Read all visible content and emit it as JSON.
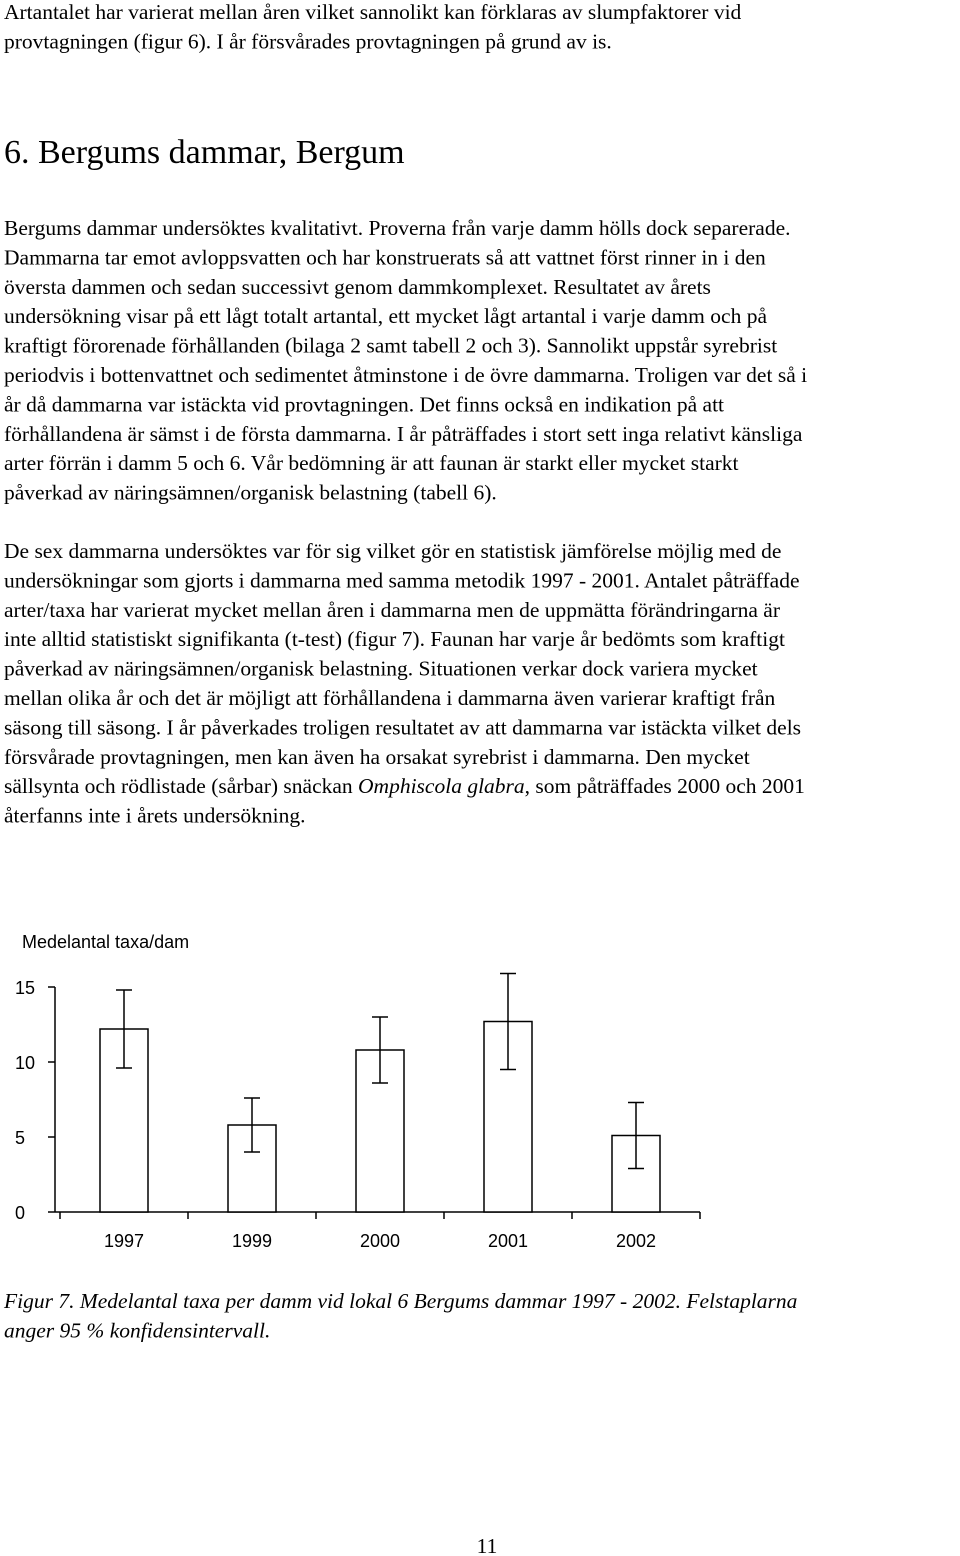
{
  "paragraphs": [
    {
      "lines": [
        "Artantalet har varierat mellan åren vilket sannolikt kan förklaras av slumpfaktorer vid",
        "provtagningen (figur 6). I år försvårades provtagningen på grund av is."
      ]
    },
    {
      "lines": [
        "Bergums dammar undersöktes kvalitativt. Proverna från varje damm hölls dock separerade.",
        "Dammarna tar emot avloppsvatten och har konstruerats så att vattnet först rinner in i den",
        "översta dammen och sedan successivt genom dammkomplexet. Resultatet av årets",
        "undersökning visar på ett lågt totalt artantal, ett mycket lågt artantal i varje damm och på",
        "kraftigt förorenade förhållanden (bilaga 2 samt tabell 2 och 3). Sannolikt uppstår syrebrist",
        "periodvis i bottenvattnet och sedimentet åtminstone i de övre dammarna. Troligen var det så i",
        "år då dammarna var istäckta vid provtagningen. Det finns också en indikation på att",
        "förhållandena är sämst i de första dammarna. I år påträffades i stort sett inga relativt känsliga",
        "arter förrän i damm 5 och 6. Vår bedömning är att faunan är starkt eller mycket starkt",
        "påverkad av näringsämnen/organisk belastning (tabell 6)."
      ]
    },
    {
      "lines": [
        "De sex dammarna undersöktes var för sig vilket gör en statistisk jämförelse möjlig med de",
        "undersökningar som gjorts i dammarna med samma metodik 1997 - 2001. Antalet påträffade",
        "arter/taxa har varierat mycket mellan åren i dammarna men de uppmätta förändringarna är",
        "inte alltid statistiskt signifikanta (t-test) (figur 7). Faunan har varje år bedömts som kraftigt",
        "påverkad av näringsämnen/organisk belastning. Situationen verkar dock variera mycket",
        "mellan olika år och det är möjligt att förhållandena i dammarna även varierar kraftigt från",
        "säsong till säsong. I år påverkades troligen resultatet av att dammarna var istäckta vilket dels",
        "försvårade provtagningen, men kan även ha orsakat syrebrist i dammarna. Den mycket",
        {
          "before": "sällsynta och rödlistade (sårbar) snäckan ",
          "italic": "Omphiscola glabra",
          "after": ", som påträffades 2000 och 2001"
        },
        "återfanns inte i årets undersökning."
      ]
    }
  ],
  "heading": "6. Bergums dammar, Bergum",
  "chart_data": {
    "type": "bar",
    "ylabel": "Medelantal taxa/dam",
    "categories": [
      "1997",
      "1999",
      "2000",
      "2001",
      "2002"
    ],
    "values": [
      12.2,
      5.8,
      10.8,
      12.7,
      5.1
    ],
    "errors": [
      2.6,
      1.8,
      2.2,
      3.2,
      2.2
    ],
    "color": "#ffffff",
    "ylim": [
      0,
      15
    ],
    "yticks": [
      0,
      5,
      10,
      15
    ],
    "grid": false
  },
  "caption": {
    "lines": [
      "Figur 7. Medelantal taxa per damm vid lokal 6 Bergums dammar 1997 - 2002. Felstaplarna",
      "anger 95 % konfidensintervall."
    ]
  },
  "page_number": "11"
}
